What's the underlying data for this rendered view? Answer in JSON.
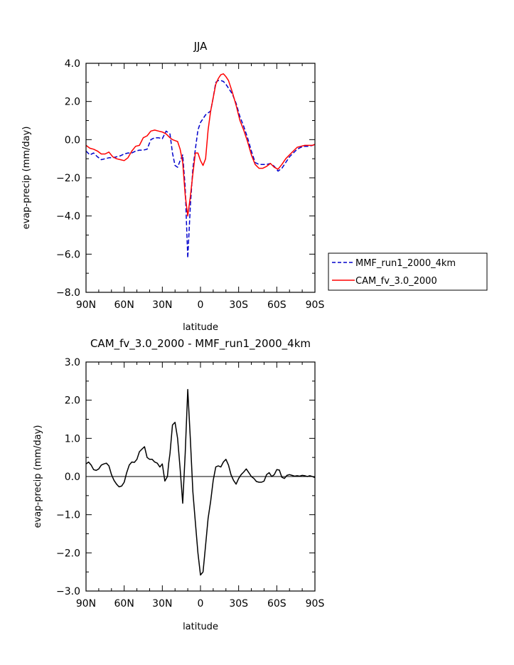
{
  "chart_data": [
    {
      "type": "line",
      "title": "JJA",
      "xlabel": "latitude",
      "ylabel": "evap-precip (mm/day)",
      "xlim": [
        90,
        -90
      ],
      "ylim": [
        -8,
        4
      ],
      "x_ticks": [
        {
          "value": 90,
          "label": "90N"
        },
        {
          "value": 60,
          "label": "60N"
        },
        {
          "value": 30,
          "label": "30N"
        },
        {
          "value": 0,
          "label": "0"
        },
        {
          "value": -30,
          "label": "30S"
        },
        {
          "value": -60,
          "label": "60S"
        },
        {
          "value": -90,
          "label": "90S"
        }
      ],
      "y_ticks": [
        {
          "value": 4,
          "label": "4.0"
        },
        {
          "value": 2,
          "label": "2.0"
        },
        {
          "value": 0,
          "label": "0.0"
        },
        {
          "value": -2,
          "label": "-2.0"
        },
        {
          "value": -4,
          "label": "-4.0"
        },
        {
          "value": -6,
          "label": "-6.0"
        },
        {
          "value": -8,
          "label": "-8.0"
        }
      ],
      "legend_position": "right",
      "series": [
        {
          "name": "MMF_run1_2000_4km",
          "color": "#0000cc",
          "dash": "dashed",
          "x": [
            90,
            87,
            84,
            81,
            78,
            75,
            72,
            69,
            66,
            63,
            60,
            57,
            54,
            51,
            48,
            45,
            42,
            39,
            36,
            33,
            30,
            27,
            24,
            22,
            20,
            18,
            16,
            14,
            12,
            10,
            8,
            6,
            4,
            2,
            0,
            -2,
            -4,
            -6,
            -8,
            -10,
            -12,
            -14,
            -16,
            -18,
            -20,
            -22,
            -25,
            -28,
            -31,
            -34,
            -37,
            -40,
            -43,
            -46,
            -49,
            -52,
            -55,
            -58,
            -61,
            -64,
            -67,
            -70,
            -73,
            -76,
            -79,
            -82,
            -85,
            -88,
            -90
          ],
          "values": [
            -0.6,
            -0.8,
            -0.7,
            -0.9,
            -1.05,
            -1.0,
            -0.95,
            -0.95,
            -0.9,
            -0.85,
            -0.75,
            -0.7,
            -0.7,
            -0.6,
            -0.55,
            -0.55,
            -0.5,
            0.0,
            0.1,
            0.1,
            0.05,
            0.45,
            0.3,
            -0.7,
            -1.35,
            -1.45,
            -1.1,
            -0.8,
            -2.5,
            -6.2,
            -3.5,
            -1.5,
            -0.5,
            0.5,
            0.9,
            1.1,
            1.3,
            1.4,
            1.5,
            2.2,
            3.0,
            3.1,
            3.1,
            3.05,
            2.9,
            2.7,
            2.4,
            1.9,
            1.2,
            0.7,
            0.1,
            -0.6,
            -1.2,
            -1.3,
            -1.3,
            -1.3,
            -1.25,
            -1.4,
            -1.65,
            -1.5,
            -1.2,
            -0.9,
            -0.7,
            -0.5,
            -0.4,
            -0.35,
            -0.35,
            -0.3,
            -0.25
          ]
        },
        {
          "name": "CAM_fv_3.0_2000",
          "color": "#ff0000",
          "dash": "solid",
          "x": [
            90,
            87,
            84,
            81,
            78,
            75,
            72,
            69,
            66,
            63,
            60,
            57,
            54,
            51,
            48,
            45,
            42,
            39,
            36,
            33,
            30,
            27,
            24,
            22,
            20,
            18,
            16,
            14,
            12,
            10,
            8,
            6,
            4,
            2,
            0,
            -2,
            -4,
            -6,
            -8,
            -10,
            -12,
            -14,
            -16,
            -18,
            -20,
            -22,
            -25,
            -28,
            -31,
            -34,
            -37,
            -40,
            -43,
            -46,
            -49,
            -52,
            -55,
            -58,
            -61,
            -64,
            -67,
            -70,
            -73,
            -76,
            -79,
            -82,
            -85,
            -88,
            -90
          ],
          "values": [
            -0.3,
            -0.45,
            -0.5,
            -0.6,
            -0.75,
            -0.75,
            -0.65,
            -0.9,
            -1.0,
            -1.05,
            -1.1,
            -0.95,
            -0.6,
            -0.35,
            -0.3,
            0.1,
            0.2,
            0.45,
            0.5,
            0.45,
            0.4,
            0.3,
            0.1,
            0.0,
            -0.05,
            -0.1,
            -0.5,
            -1.2,
            -2.9,
            -4.0,
            -3.0,
            -1.8,
            -0.7,
            -0.7,
            -1.1,
            -1.35,
            -1.0,
            0.5,
            1.5,
            2.2,
            2.9,
            3.2,
            3.4,
            3.45,
            3.3,
            3.1,
            2.5,
            1.8,
            1.0,
            0.5,
            -0.1,
            -0.8,
            -1.3,
            -1.5,
            -1.5,
            -1.4,
            -1.25,
            -1.45,
            -1.55,
            -1.3,
            -1.0,
            -0.8,
            -0.6,
            -0.4,
            -0.35,
            -0.3,
            -0.3,
            -0.3,
            -0.25
          ]
        }
      ]
    },
    {
      "type": "line",
      "title": "CAM_fv_3.0_2000 - MMF_run1_2000_4km",
      "xlabel": "latitude",
      "ylabel": "evap-precip (mm/day)",
      "xlim": [
        90,
        -90
      ],
      "ylim": [
        -3,
        3
      ],
      "x_ticks": [
        {
          "value": 90,
          "label": "90N"
        },
        {
          "value": 60,
          "label": "60N"
        },
        {
          "value": 30,
          "label": "30N"
        },
        {
          "value": 0,
          "label": "0"
        },
        {
          "value": -30,
          "label": "30S"
        },
        {
          "value": -60,
          "label": "60S"
        },
        {
          "value": -90,
          "label": "90S"
        }
      ],
      "y_ticks": [
        {
          "value": 3,
          "label": "3.0"
        },
        {
          "value": 2,
          "label": "2.0"
        },
        {
          "value": 1,
          "label": "1.0"
        },
        {
          "value": 0,
          "label": "0.0"
        },
        {
          "value": -1,
          "label": "-1.0"
        },
        {
          "value": -2,
          "label": "-2.0"
        },
        {
          "value": -3,
          "label": "-3.0"
        }
      ],
      "series": [
        {
          "color": "#000000",
          "dash": "solid",
          "x": [
            90,
            88,
            86,
            84,
            82,
            80,
            78,
            76,
            74,
            72,
            70,
            68,
            66,
            64,
            62,
            60,
            58,
            56,
            54,
            52,
            50,
            48,
            46,
            44,
            42,
            40,
            38,
            36,
            34,
            32,
            30,
            28,
            26,
            25,
            24,
            22,
            20,
            18,
            16,
            14,
            12,
            10,
            8,
            6,
            4,
            2,
            0,
            -2,
            -4,
            -6,
            -8,
            -10,
            -12,
            -14,
            -16,
            -18,
            -20,
            -22,
            -24,
            -26,
            -28,
            -30,
            -32,
            -34,
            -36,
            -38,
            -40,
            -42,
            -44,
            -46,
            -48,
            -50,
            -52,
            -54,
            -56,
            -58,
            -60,
            -62,
            -64,
            -66,
            -68,
            -70,
            -72,
            -74,
            -76,
            -78,
            -80,
            -82,
            -84,
            -86,
            -88,
            -90
          ],
          "values": [
            0.33,
            0.38,
            0.3,
            0.18,
            0.16,
            0.2,
            0.3,
            0.33,
            0.35,
            0.28,
            0.05,
            -0.1,
            -0.2,
            -0.27,
            -0.25,
            -0.15,
            0.1,
            0.3,
            0.38,
            0.37,
            0.45,
            0.65,
            0.72,
            0.78,
            0.5,
            0.45,
            0.45,
            0.38,
            0.35,
            0.25,
            0.33,
            -0.12,
            0.0,
            0.35,
            0.6,
            1.35,
            1.42,
            1.0,
            0.2,
            -0.7,
            0.6,
            2.28,
            1.0,
            -0.4,
            -1.2,
            -2.0,
            -2.58,
            -2.5,
            -1.8,
            -1.1,
            -0.65,
            -0.1,
            0.25,
            0.28,
            0.25,
            0.38,
            0.45,
            0.3,
            0.05,
            -0.1,
            -0.2,
            -0.05,
            0.05,
            0.12,
            0.2,
            0.1,
            0.0,
            -0.05,
            -0.13,
            -0.15,
            -0.15,
            -0.12,
            0.05,
            0.1,
            0.0,
            0.05,
            0.18,
            0.17,
            -0.02,
            -0.05,
            0.03,
            0.05,
            0.03,
            0.01,
            0.02,
            0.01,
            0.03,
            0.02,
            0.0,
            0.02,
            0.0,
            -0.03
          ]
        }
      ]
    }
  ]
}
